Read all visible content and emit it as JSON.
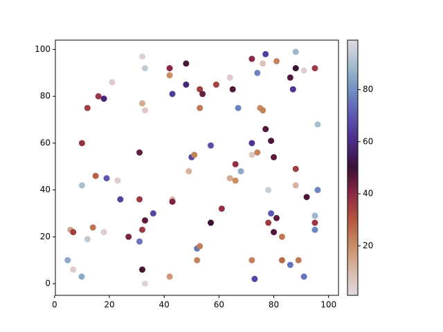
{
  "chart_data": {
    "type": "scatter",
    "x": [
      4.8,
      5.8,
      6.8,
      6.8,
      9.9,
      10,
      10,
      12,
      12,
      14,
      15,
      16,
      18,
      18,
      19,
      21,
      23,
      24,
      27,
      31,
      31,
      31,
      32,
      32,
      32,
      32,
      33,
      33,
      33,
      33,
      36,
      42,
      42,
      42,
      43,
      43,
      43,
      48,
      48,
      49,
      50,
      51,
      52,
      52,
      53,
      53,
      53,
      54,
      57,
      57,
      59,
      61,
      64,
      64,
      65,
      66,
      66,
      67,
      68,
      72,
      72,
      72,
      72,
      73,
      74,
      74,
      75,
      76,
      76,
      77,
      77,
      78,
      78,
      79,
      79,
      80,
      80,
      81,
      81,
      83,
      83,
      86,
      86,
      87,
      88,
      88,
      88,
      88,
      89,
      91,
      91,
      92,
      95,
      95,
      95,
      95,
      96,
      96
    ],
    "y": [
      10,
      23,
      22,
      6,
      3,
      42,
      60,
      75,
      19,
      24,
      46,
      80,
      79,
      22,
      45,
      86,
      44,
      36,
      20,
      18,
      36,
      56,
      97,
      77,
      6,
      23,
      27,
      92,
      74,
      0,
      30,
      3,
      89,
      92,
      81,
      36,
      35,
      94,
      85,
      48,
      54,
      55,
      15,
      10,
      16,
      75,
      83,
      81,
      59,
      26,
      85,
      32,
      88,
      45,
      83,
      51,
      44,
      75,
      48,
      55,
      60,
      96,
      10,
      2,
      56,
      90,
      75,
      74,
      94,
      66,
      98,
      26,
      40,
      30,
      61,
      22,
      54,
      95,
      28,
      20,
      10,
      8,
      88,
      83,
      99,
      92,
      42,
      49,
      10,
      91,
      3,
      37,
      92,
      29,
      26,
      23,
      68,
      40
    ],
    "c": [
      85,
      15,
      35,
      5,
      85,
      90,
      38,
      35,
      93,
      25,
      28,
      37,
      58,
      5,
      70,
      5,
      5,
      65,
      42,
      75,
      36,
      45,
      4,
      14,
      48,
      36,
      46,
      94,
      6,
      3,
      66,
      18,
      20,
      40,
      64,
      10,
      42,
      48,
      58,
      12,
      66,
      22,
      75,
      22,
      23,
      24,
      36,
      45,
      68,
      50,
      34,
      38,
      5,
      14,
      47,
      38,
      20,
      78,
      85,
      6,
      62,
      40,
      22,
      66,
      22,
      78,
      20,
      22,
      8,
      47,
      65,
      36,
      95,
      70,
      48,
      47,
      46,
      22,
      46,
      24,
      27,
      75,
      47,
      62,
      88,
      50,
      12,
      35,
      24,
      4,
      75,
      48,
      36,
      88,
      37,
      78,
      90,
      78
    ],
    "xlim": [
      0.3,
      103.6
    ],
    "ylim": [
      -5,
      104
    ],
    "xticks": [
      0,
      20,
      40,
      60,
      80,
      100
    ],
    "yticks": [
      0,
      20,
      40,
      60,
      80,
      100
    ],
    "colormap": [
      "#e2d9e2",
      "#d8b8a8",
      "#c88b62",
      "#b2553f",
      "#8a2746",
      "#3a1235",
      "#4b2a87",
      "#5c55b0",
      "#6f8dc3",
      "#a3bdcd",
      "#e2d9e2"
    ],
    "clim": [
      1,
      99
    ],
    "cticks": [
      20,
      40,
      60,
      80
    ]
  }
}
